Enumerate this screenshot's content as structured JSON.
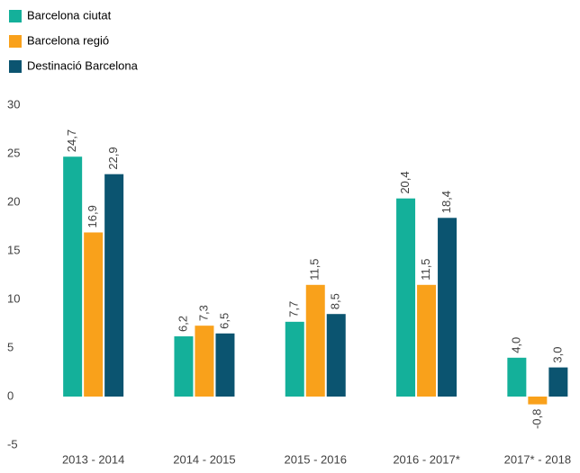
{
  "chart_data": {
    "type": "bar",
    "categories": [
      "2013 - 2014",
      "2014 - 2015",
      "2015 - 2016",
      "2016 - 2017*",
      "2017* - 2018"
    ],
    "series": [
      {
        "name": "Barcelona ciutat",
        "color": "#14b09a",
        "values": [
          24.7,
          6.2,
          7.7,
          20.4,
          4.0
        ],
        "value_labels": [
          "24,7",
          "6,2",
          "7,7",
          "20,4",
          "4,0"
        ]
      },
      {
        "name": "Barcelona regió",
        "color": "#f9a11b",
        "values": [
          16.9,
          7.3,
          11.5,
          11.5,
          -0.8
        ],
        "value_labels": [
          "16,9",
          "7,3",
          "11,5",
          "11,5",
          "-0,8"
        ]
      },
      {
        "name": "Destinació Barcelona",
        "color": "#0b5470",
        "values": [
          22.9,
          6.5,
          8.5,
          18.4,
          3.0
        ],
        "value_labels": [
          "22,9",
          "6,5",
          "8,5",
          "18,4",
          "3,0"
        ]
      }
    ],
    "ylim": [
      -5,
      30
    ],
    "yticks": [
      -5,
      0,
      5,
      10,
      15,
      20,
      25,
      30
    ],
    "legend": "top-left"
  }
}
